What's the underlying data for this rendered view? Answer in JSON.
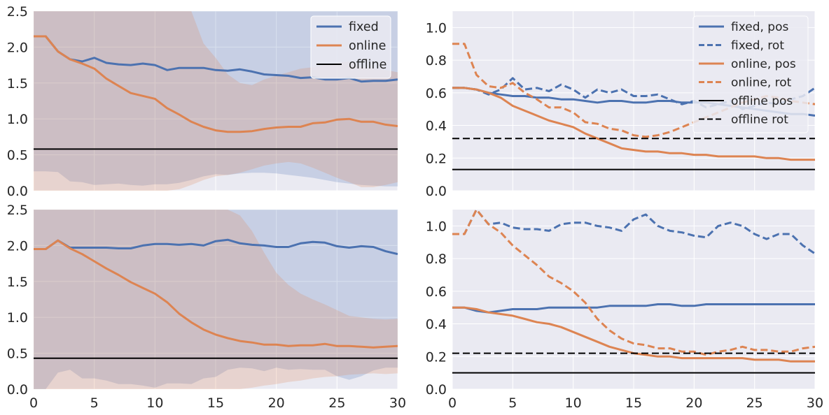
{
  "colors": {
    "fixed": "#4c72b0",
    "online": "#dd8452",
    "offline": "#000000",
    "panel_bg": "#eaeaf2",
    "grid": "#ffffff",
    "tick_text": "#262626"
  },
  "chart_data": [
    {
      "id": "top-left",
      "type": "line",
      "xlim": [
        0,
        30
      ],
      "ylim": [
        0,
        2.5
      ],
      "yticks": [
        "0.0",
        "0.5",
        "1.0",
        "1.5",
        "2.0",
        "2.5"
      ],
      "xticks": [],
      "grid": true,
      "legend_position": "top-right",
      "legend": [
        "fixed",
        "online",
        "offline"
      ],
      "x": [
        0,
        1,
        2,
        3,
        4,
        5,
        6,
        7,
        8,
        9,
        10,
        11,
        12,
        13,
        14,
        15,
        16,
        17,
        18,
        19,
        20,
        21,
        22,
        23,
        24,
        25,
        26,
        27,
        28,
        29,
        30
      ],
      "series": [
        {
          "name": "fixed",
          "color_key": "fixed",
          "dash": "solid",
          "values": [
            2.15,
            2.15,
            1.94,
            1.83,
            1.8,
            1.85,
            1.78,
            1.76,
            1.75,
            1.77,
            1.75,
            1.68,
            1.71,
            1.71,
            1.71,
            1.68,
            1.67,
            1.69,
            1.66,
            1.62,
            1.61,
            1.6,
            1.57,
            1.58,
            1.55,
            1.55,
            1.57,
            1.52,
            1.53,
            1.53,
            1.55
          ],
          "band_upper": [
            2.5,
            2.5,
            2.5,
            2.5,
            2.5,
            2.5,
            2.5,
            2.5,
            2.5,
            2.5,
            2.5,
            2.5,
            2.5,
            2.5,
            2.5,
            2.5,
            2.5,
            2.5,
            2.5,
            2.5,
            2.5,
            2.5,
            2.5,
            2.5,
            2.5,
            2.5,
            2.5,
            2.5,
            2.5,
            2.5,
            2.5
          ],
          "band_lower": [
            0.27,
            0.27,
            0.26,
            0.13,
            0.12,
            0.08,
            0.09,
            0.1,
            0.08,
            0.07,
            0.09,
            0.09,
            0.11,
            0.15,
            0.2,
            0.23,
            0.22,
            0.24,
            0.25,
            0.25,
            0.24,
            0.22,
            0.2,
            0.18,
            0.15,
            0.12,
            0.1,
            0.08,
            0.07,
            0.06,
            0.06
          ]
        },
        {
          "name": "online",
          "color_key": "online",
          "dash": "solid",
          "values": [
            2.15,
            2.15,
            1.94,
            1.83,
            1.77,
            1.7,
            1.56,
            1.46,
            1.36,
            1.32,
            1.28,
            1.15,
            1.06,
            0.96,
            0.89,
            0.84,
            0.82,
            0.82,
            0.83,
            0.86,
            0.88,
            0.89,
            0.89,
            0.94,
            0.95,
            0.99,
            1.0,
            0.96,
            0.96,
            0.92,
            0.9
          ],
          "band_upper": [
            2.5,
            2.5,
            2.5,
            2.5,
            2.5,
            2.5,
            2.5,
            2.5,
            2.5,
            2.5,
            2.5,
            2.5,
            2.5,
            2.5,
            2.05,
            1.85,
            1.62,
            1.5,
            1.47,
            1.55,
            1.6,
            1.65,
            1.7,
            1.72,
            1.75,
            1.78,
            1.8,
            1.72,
            1.7,
            1.68,
            1.65
          ],
          "band_lower": [
            0.0,
            0.0,
            0.0,
            0.0,
            0.0,
            0.0,
            0.0,
            0.0,
            0.0,
            0.0,
            0.0,
            0.0,
            0.02,
            0.08,
            0.15,
            0.2,
            0.22,
            0.25,
            0.3,
            0.35,
            0.38,
            0.4,
            0.38,
            0.32,
            0.25,
            0.18,
            0.12,
            0.05,
            0.05,
            0.08,
            0.12
          ]
        },
        {
          "name": "offline",
          "color_key": "offline",
          "dash": "solid",
          "constant": 0.58
        }
      ]
    },
    {
      "id": "top-right",
      "type": "line",
      "xlim": [
        0,
        30
      ],
      "ylim": [
        0,
        1.1
      ],
      "yticks": [
        "0.0",
        "0.2",
        "0.4",
        "0.6",
        "0.8",
        "1.0"
      ],
      "xticks": [],
      "grid": true,
      "legend_position": "top-right",
      "legend": [
        "fixed, pos",
        "fixed, rot",
        "online, pos",
        "online, rot",
        "offline pos",
        "offline rot"
      ],
      "x": [
        0,
        1,
        2,
        3,
        4,
        5,
        6,
        7,
        8,
        9,
        10,
        11,
        12,
        13,
        14,
        15,
        16,
        17,
        18,
        19,
        20,
        21,
        22,
        23,
        24,
        25,
        26,
        27,
        28,
        29,
        30
      ],
      "series": [
        {
          "name": "fixed, pos",
          "color_key": "fixed",
          "dash": "solid",
          "values": [
            0.63,
            0.63,
            0.62,
            0.6,
            0.59,
            0.58,
            0.58,
            0.57,
            0.57,
            0.56,
            0.56,
            0.55,
            0.54,
            0.55,
            0.55,
            0.54,
            0.54,
            0.55,
            0.55,
            0.54,
            0.54,
            0.54,
            0.53,
            0.52,
            0.51,
            0.5,
            0.49,
            0.48,
            0.47,
            0.47,
            0.46
          ]
        },
        {
          "name": "fixed, rot",
          "color_key": "fixed",
          "dash": "dashed",
          "values": [
            0.63,
            0.63,
            0.62,
            0.59,
            0.62,
            0.69,
            0.62,
            0.63,
            0.61,
            0.65,
            0.62,
            0.57,
            0.62,
            0.6,
            0.62,
            0.58,
            0.58,
            0.59,
            0.56,
            0.53,
            0.55,
            0.51,
            0.53,
            0.55,
            0.5,
            0.52,
            0.54,
            0.53,
            0.56,
            0.58,
            0.63
          ]
        },
        {
          "name": "online, pos",
          "color_key": "online",
          "dash": "solid",
          "values": [
            0.63,
            0.63,
            0.62,
            0.6,
            0.57,
            0.52,
            0.49,
            0.46,
            0.43,
            0.41,
            0.39,
            0.35,
            0.32,
            0.29,
            0.26,
            0.25,
            0.24,
            0.24,
            0.23,
            0.23,
            0.22,
            0.22,
            0.21,
            0.21,
            0.21,
            0.21,
            0.2,
            0.2,
            0.19,
            0.19,
            0.19
          ]
        },
        {
          "name": "online, rot",
          "color_key": "online",
          "dash": "dashed",
          "values": [
            0.9,
            0.9,
            0.71,
            0.64,
            0.63,
            0.66,
            0.6,
            0.56,
            0.51,
            0.51,
            0.48,
            0.42,
            0.41,
            0.38,
            0.37,
            0.34,
            0.33,
            0.34,
            0.36,
            0.39,
            0.42,
            0.45,
            0.48,
            0.51,
            0.54,
            0.56,
            0.58,
            0.57,
            0.55,
            0.54,
            0.53
          ]
        },
        {
          "name": "offline pos",
          "color_key": "offline",
          "dash": "solid",
          "constant": 0.13
        },
        {
          "name": "offline rot",
          "color_key": "offline",
          "dash": "dashed",
          "constant": 0.32
        }
      ]
    },
    {
      "id": "bottom-left",
      "type": "line",
      "xlim": [
        0,
        30
      ],
      "ylim": [
        0,
        2.5
      ],
      "yticks": [
        "0.0",
        "0.5",
        "1.0",
        "1.5",
        "2.0",
        "2.5"
      ],
      "xticks": [
        "0",
        "5",
        "10",
        "15",
        "20",
        "25",
        "30"
      ],
      "grid": true,
      "x": [
        0,
        1,
        2,
        3,
        4,
        5,
        6,
        7,
        8,
        9,
        10,
        11,
        12,
        13,
        14,
        15,
        16,
        17,
        18,
        19,
        20,
        21,
        22,
        23,
        24,
        25,
        26,
        27,
        28,
        29,
        30
      ],
      "series": [
        {
          "name": "fixed",
          "color_key": "fixed",
          "dash": "solid",
          "values": [
            1.95,
            1.95,
            2.07,
            1.97,
            1.97,
            1.97,
            1.97,
            1.96,
            1.96,
            2.0,
            2.02,
            2.02,
            2.01,
            2.02,
            2.0,
            2.06,
            2.08,
            2.03,
            2.01,
            2.0,
            1.98,
            1.98,
            2.03,
            2.05,
            2.04,
            1.99,
            1.97,
            1.99,
            1.98,
            1.92,
            1.88
          ],
          "band_upper": [
            2.5,
            2.5,
            2.5,
            2.5,
            2.5,
            2.5,
            2.5,
            2.5,
            2.5,
            2.5,
            2.5,
            2.5,
            2.5,
            2.5,
            2.5,
            2.5,
            2.5,
            2.5,
            2.5,
            2.5,
            2.5,
            2.5,
            2.5,
            2.5,
            2.5,
            2.5,
            2.5,
            2.5,
            2.5,
            2.5,
            2.5
          ],
          "band_lower": [
            0.0,
            0.0,
            0.23,
            0.27,
            0.15,
            0.15,
            0.12,
            0.07,
            0.07,
            0.05,
            0.02,
            0.08,
            0.08,
            0.07,
            0.15,
            0.17,
            0.27,
            0.3,
            0.29,
            0.25,
            0.3,
            0.27,
            0.28,
            0.27,
            0.27,
            0.18,
            0.13,
            0.18,
            0.26,
            0.3,
            0.3
          ]
        },
        {
          "name": "online",
          "color_key": "online",
          "dash": "solid",
          "values": [
            1.95,
            1.95,
            2.07,
            1.96,
            1.88,
            1.78,
            1.68,
            1.59,
            1.49,
            1.41,
            1.33,
            1.21,
            1.05,
            0.93,
            0.83,
            0.76,
            0.71,
            0.67,
            0.65,
            0.62,
            0.62,
            0.6,
            0.61,
            0.61,
            0.63,
            0.6,
            0.6,
            0.59,
            0.58,
            0.59,
            0.6
          ],
          "band_upper": [
            2.5,
            2.5,
            2.5,
            2.5,
            2.5,
            2.5,
            2.5,
            2.5,
            2.5,
            2.5,
            2.5,
            2.5,
            2.5,
            2.5,
            2.5,
            2.5,
            2.5,
            2.42,
            2.2,
            1.9,
            1.62,
            1.45,
            1.33,
            1.25,
            1.18,
            1.1,
            1.02,
            1.0,
            0.98,
            0.97,
            0.98
          ],
          "band_lower": [
            0.0,
            0.0,
            0.0,
            0.0,
            0.0,
            0.0,
            0.0,
            0.0,
            0.0,
            0.0,
            0.0,
            0.0,
            0.0,
            0.0,
            0.0,
            0.0,
            0.0,
            0.0,
            0.02,
            0.05,
            0.07,
            0.1,
            0.12,
            0.15,
            0.17,
            0.18,
            0.2,
            0.21,
            0.22,
            0.21,
            0.22
          ]
        },
        {
          "name": "offline",
          "color_key": "offline",
          "dash": "solid",
          "constant": 0.43
        }
      ]
    },
    {
      "id": "bottom-right",
      "type": "line",
      "xlim": [
        0,
        30
      ],
      "ylim": [
        0,
        1.1
      ],
      "yticks": [
        "0.0",
        "0.2",
        "0.4",
        "0.6",
        "0.8",
        "1.0"
      ],
      "xticks": [
        "0",
        "5",
        "10",
        "15",
        "20",
        "25",
        "30"
      ],
      "grid": true,
      "x": [
        0,
        1,
        2,
        3,
        4,
        5,
        6,
        7,
        8,
        9,
        10,
        11,
        12,
        13,
        14,
        15,
        16,
        17,
        18,
        19,
        20,
        21,
        22,
        23,
        24,
        25,
        26,
        27,
        28,
        29,
        30
      ],
      "series": [
        {
          "name": "fixed, pos",
          "color_key": "fixed",
          "dash": "solid",
          "values": [
            0.5,
            0.5,
            0.48,
            0.47,
            0.48,
            0.49,
            0.49,
            0.49,
            0.5,
            0.5,
            0.5,
            0.5,
            0.5,
            0.51,
            0.51,
            0.51,
            0.51,
            0.52,
            0.52,
            0.51,
            0.51,
            0.52,
            0.52,
            0.52,
            0.52,
            0.52,
            0.52,
            0.52,
            0.52,
            0.52,
            0.52
          ]
        },
        {
          "name": "fixed, rot",
          "color_key": "fixed",
          "dash": "dashed",
          "values": [
            0.95,
            0.95,
            1.1,
            1.01,
            1.02,
            0.99,
            0.98,
            0.98,
            0.97,
            1.01,
            1.02,
            1.02,
            1.0,
            0.99,
            0.97,
            1.04,
            1.07,
            1.0,
            0.97,
            0.96,
            0.94,
            0.93,
            1.0,
            1.02,
            1.0,
            0.95,
            0.92,
            0.95,
            0.95,
            0.88,
            0.83
          ]
        },
        {
          "name": "online, pos",
          "color_key": "online",
          "dash": "solid",
          "values": [
            0.5,
            0.5,
            0.49,
            0.47,
            0.46,
            0.45,
            0.43,
            0.41,
            0.4,
            0.38,
            0.35,
            0.32,
            0.29,
            0.26,
            0.24,
            0.22,
            0.21,
            0.2,
            0.2,
            0.19,
            0.19,
            0.19,
            0.19,
            0.19,
            0.19,
            0.18,
            0.18,
            0.18,
            0.17,
            0.17,
            0.17
          ]
        },
        {
          "name": "online, rot",
          "color_key": "online",
          "dash": "dashed",
          "values": [
            0.95,
            0.95,
            1.1,
            1.01,
            0.96,
            0.88,
            0.82,
            0.76,
            0.69,
            0.65,
            0.6,
            0.53,
            0.43,
            0.36,
            0.31,
            0.28,
            0.27,
            0.25,
            0.25,
            0.23,
            0.23,
            0.21,
            0.23,
            0.24,
            0.26,
            0.24,
            0.24,
            0.23,
            0.23,
            0.25,
            0.26
          ]
        },
        {
          "name": "offline pos",
          "color_key": "offline",
          "dash": "solid",
          "constant": 0.1
        },
        {
          "name": "offline rot",
          "color_key": "offline",
          "dash": "dashed",
          "constant": 0.22
        }
      ]
    }
  ]
}
